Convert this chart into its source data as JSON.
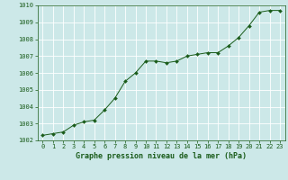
{
  "x": [
    0,
    1,
    2,
    3,
    4,
    5,
    6,
    7,
    8,
    9,
    10,
    11,
    12,
    13,
    14,
    15,
    16,
    17,
    18,
    19,
    20,
    21,
    22,
    23
  ],
  "y": [
    1002.3,
    1002.4,
    1002.5,
    1002.9,
    1003.1,
    1003.2,
    1003.8,
    1004.5,
    1005.5,
    1006.0,
    1006.7,
    1006.7,
    1006.6,
    1006.7,
    1007.0,
    1007.1,
    1007.2,
    1007.2,
    1007.6,
    1008.1,
    1008.8,
    1009.6,
    1009.7,
    1009.7
  ],
  "line_color": "#1a5c1a",
  "marker": "D",
  "marker_size": 2.0,
  "bg_color": "#cce8e8",
  "grid_color": "#ffffff",
  "xlabel": "Graphe pression niveau de la mer (hPa)",
  "xlabel_color": "#1a5c1a",
  "xlabel_fontsize": 6.0,
  "tick_color": "#1a5c1a",
  "tick_fontsize": 5.0,
  "ylim": [
    1002,
    1010
  ],
  "xlim": [
    -0.5,
    23.5
  ],
  "yticks": [
    1002,
    1003,
    1004,
    1005,
    1006,
    1007,
    1008,
    1009,
    1010
  ],
  "xticks": [
    0,
    1,
    2,
    3,
    4,
    5,
    6,
    7,
    8,
    9,
    10,
    11,
    12,
    13,
    14,
    15,
    16,
    17,
    18,
    19,
    20,
    21,
    22,
    23
  ]
}
